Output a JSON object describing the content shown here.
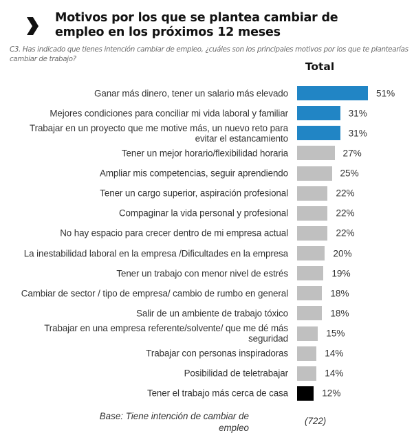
{
  "header": {
    "icon": "chevron-right-icon",
    "title_line1": "Motivos por los que se plantea cambiar de",
    "title_line2": "empleo en los próximos 12 meses",
    "question": "C3. Has indicado que tienes intención cambiar de empleo, ¿cuáles son los principales motivos por los que te plantearías cambiar de trabajo?"
  },
  "colors": {
    "highlight": "#2185c5",
    "default": "#c0c0c0",
    "last": "#000000"
  },
  "chart_data": {
    "type": "bar",
    "orientation": "horizontal",
    "title": "Motivos por los que se plantea cambiar de empleo en los próximos 12 meses",
    "series": [
      {
        "name": "Total",
        "values": [
          51,
          31,
          31,
          27,
          25,
          22,
          22,
          22,
          20,
          19,
          18,
          18,
          15,
          14,
          14,
          12
        ]
      }
    ],
    "categories": [
      "Ganar más dinero, tener un salario más elevado",
      "Mejores condiciones para conciliar mi vida laboral y familiar",
      "Trabajar en un proyecto que me motive más, un nuevo reto para evitar el estancamiento",
      "Tener un mejor horario/flexibilidad horaria",
      "Ampliar mis competencias, seguir aprendiendo",
      "Tener un cargo superior, aspiración profesional",
      "Compaginar la vida personal y profesional",
      "No hay espacio para crecer dentro de mi empresa actual",
      "La inestabilidad laboral en la empresa /Dificultades en la empresa",
      "Tener un trabajo con menor nivel de estrés",
      "Cambiar de sector / tipo de empresa/ cambio de rumbo en general",
      "Salir de un ambiente de trabajo tóxico",
      "Trabajar en una empresa referente/solvente/ que me dé más seguridad",
      "Trabajar con personas inspiradoras",
      "Posibilidad de teletrabajar",
      "Tener el trabajo más cerca de casa"
    ],
    "value_labels": [
      "51%",
      "31%",
      "31%",
      "27%",
      "25%",
      "22%",
      "22%",
      "22%",
      "20%",
      "19%",
      "18%",
      "18%",
      "15%",
      "14%",
      "14%",
      "12%"
    ],
    "bar_color_keys": [
      "highlight",
      "highlight",
      "highlight",
      "default",
      "default",
      "default",
      "default",
      "default",
      "default",
      "default",
      "default",
      "default",
      "default",
      "default",
      "default",
      "last"
    ],
    "column_header": "Total",
    "unit": "%",
    "xlim": [
      0,
      100
    ],
    "grid": false,
    "legend": "none"
  },
  "footer": {
    "base_label": "Base: Tiene intención de cambiar de empleo",
    "base_n": "(722)"
  }
}
